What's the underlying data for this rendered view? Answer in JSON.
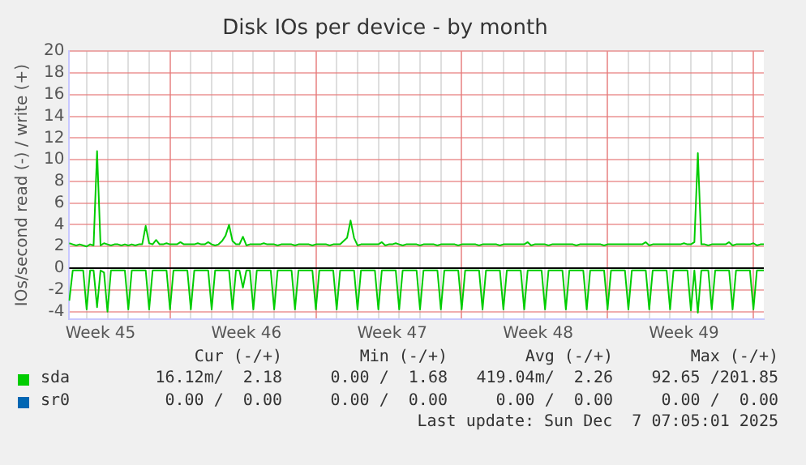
{
  "chart_data": {
    "type": "line",
    "title": "Disk IOs per device - by month",
    "ylabel": "IOs/second read (-) / write (+)",
    "categories": [
      null,
      null,
      null,
      null,
      null,
      null,
      null,
      null,
      null,
      "Week 45",
      null,
      null,
      null,
      null,
      null,
      null,
      null,
      null,
      null,
      null,
      null,
      null,
      null,
      null,
      null,
      null,
      null,
      null,
      null,
      null,
      null,
      null,
      null,
      null,
      null,
      null,
      null,
      null,
      null,
      null,
      null,
      null,
      null,
      null,
      null,
      null,
      null,
      null,
      null,
      null,
      null,
      "Week 46",
      null,
      null,
      null,
      null,
      null,
      null,
      null,
      null,
      null,
      null,
      null,
      null,
      null,
      null,
      null,
      null,
      null,
      null,
      null,
      null,
      null,
      null,
      null,
      null,
      null,
      null,
      null,
      null,
      null,
      null,
      null,
      null,
      null,
      null,
      null,
      null,
      null,
      null,
      null,
      null,
      null,
      "Week 47",
      null,
      null,
      null,
      null,
      null,
      null,
      null,
      null,
      null,
      null,
      null,
      null,
      null,
      null,
      null,
      null,
      null,
      null,
      null,
      null,
      null,
      null,
      null,
      null,
      null,
      null,
      null,
      null,
      null,
      null,
      null,
      null,
      null,
      null,
      null,
      null,
      null,
      null,
      null,
      null,
      null,
      "Week 48",
      null,
      null,
      null,
      null,
      null,
      null,
      null,
      null,
      null,
      null,
      null,
      null,
      null,
      null,
      null,
      null,
      null,
      null,
      null,
      null,
      null,
      null,
      null,
      null,
      null,
      null,
      null,
      null,
      null,
      null,
      null,
      null,
      null,
      null,
      null,
      null,
      null,
      null,
      null,
      null,
      null,
      "Week 49",
      null,
      null,
      null,
      null,
      null,
      null,
      null,
      null,
      null,
      null,
      null,
      null,
      null,
      null,
      null,
      null,
      null,
      null,
      null,
      null,
      null,
      null,
      null
    ],
    "ylim": [
      -4.7,
      20
    ],
    "yticks": [
      -4,
      -2,
      0,
      2,
      4,
      6,
      8,
      10,
      12,
      14,
      16,
      18,
      20
    ],
    "grid": true,
    "legend": "bottom",
    "marker": "none",
    "line_style": "solid",
    "series": [
      {
        "name": "sda",
        "color": "#00cc00",
        "values": [
          2.3,
          2.2,
          2.1,
          2.2,
          2.1,
          2.0,
          2.2,
          2.1,
          10.8,
          2.1,
          2.3,
          2.2,
          2.1,
          2.2,
          2.2,
          2.1,
          2.2,
          2.1,
          2.2,
          2.1,
          2.2,
          2.2,
          3.9,
          2.3,
          2.2,
          2.6,
          2.2,
          2.2,
          2.3,
          2.2,
          2.2,
          2.2,
          2.4,
          2.2,
          2.2,
          2.2,
          2.2,
          2.3,
          2.2,
          2.2,
          2.4,
          2.2,
          2.1,
          2.2,
          2.5,
          3.0,
          4.0,
          2.5,
          2.2,
          2.2,
          2.9,
          2.1,
          2.2,
          2.2,
          2.2,
          2.2,
          2.3,
          2.2,
          2.2,
          2.2,
          2.1,
          2.2,
          2.2,
          2.2,
          2.2,
          2.1,
          2.2,
          2.2,
          2.2,
          2.2,
          2.1,
          2.2,
          2.2,
          2.2,
          2.2,
          2.1,
          2.2,
          2.2,
          2.2,
          2.5,
          2.8,
          4.4,
          2.8,
          2.1,
          2.2,
          2.2,
          2.2,
          2.2,
          2.2,
          2.2,
          2.4,
          2.1,
          2.2,
          2.2,
          2.3,
          2.2,
          2.1,
          2.2,
          2.2,
          2.2,
          2.2,
          2.1,
          2.2,
          2.2,
          2.2,
          2.2,
          2.1,
          2.2,
          2.2,
          2.2,
          2.2,
          2.2,
          2.1,
          2.2,
          2.2,
          2.2,
          2.2,
          2.2,
          2.1,
          2.2,
          2.2,
          2.2,
          2.2,
          2.2,
          2.1,
          2.2,
          2.2,
          2.2,
          2.2,
          2.2,
          2.2,
          2.2,
          2.4,
          2.1,
          2.2,
          2.2,
          2.2,
          2.2,
          2.1,
          2.2,
          2.2,
          2.2,
          2.2,
          2.2,
          2.2,
          2.2,
          2.1,
          2.2,
          2.2,
          2.2,
          2.2,
          2.2,
          2.2,
          2.2,
          2.1,
          2.2,
          2.2,
          2.2,
          2.2,
          2.2,
          2.2,
          2.2,
          2.2,
          2.2,
          2.2,
          2.2,
          2.4,
          2.1,
          2.2,
          2.2,
          2.2,
          2.2,
          2.2,
          2.2,
          2.2,
          2.2,
          2.2,
          2.3,
          2.2,
          2.2,
          2.4,
          10.6,
          2.2,
          2.2,
          2.1,
          2.2,
          2.2,
          2.2,
          2.2,
          2.2,
          2.4,
          2.1,
          2.2,
          2.2,
          2.2,
          2.2,
          2.2,
          2.3,
          2.1,
          2.2,
          2.2
        ]
      },
      {
        "color": "#00cc00",
        "values": [
          -3.0,
          -0.2,
          -0.2,
          -0.2,
          -0.2,
          -3.8,
          -0.2,
          -0.2,
          -3.6,
          -0.2,
          -0.4,
          -4.0,
          -0.2,
          -0.2,
          -0.2,
          -0.2,
          -0.2,
          -3.8,
          -0.2,
          -0.2,
          -0.2,
          -0.2,
          -0.2,
          -3.8,
          -0.2,
          -0.2,
          -0.2,
          -0.2,
          -0.2,
          -3.8,
          -0.2,
          -0.2,
          -0.2,
          -0.2,
          -0.2,
          -3.8,
          -0.2,
          -0.2,
          -0.2,
          -0.2,
          -0.2,
          -3.8,
          -0.2,
          -0.2,
          -0.2,
          -0.2,
          -0.2,
          -3.8,
          -0.2,
          -0.2,
          -1.8,
          -0.2,
          -0.2,
          -3.8,
          -0.2,
          -0.2,
          -0.2,
          -0.2,
          -0.2,
          -3.8,
          -0.2,
          -0.2,
          -0.2,
          -0.2,
          -0.2,
          -3.8,
          -0.2,
          -0.2,
          -0.2,
          -0.2,
          -0.2,
          -3.8,
          -0.2,
          -0.2,
          -0.2,
          -0.2,
          -0.2,
          -3.8,
          -0.2,
          -0.2,
          -0.2,
          -0.2,
          -0.2,
          -3.8,
          -0.2,
          -0.2,
          -0.2,
          -0.2,
          -0.2,
          -3.8,
          -0.2,
          -0.2,
          -0.2,
          -0.2,
          -0.2,
          -3.8,
          -0.2,
          -0.2,
          -0.2,
          -0.2,
          -0.2,
          -3.8,
          -0.2,
          -0.2,
          -0.2,
          -0.2,
          -0.2,
          -3.8,
          -0.2,
          -0.2,
          -0.2,
          -0.2,
          -0.2,
          -3.8,
          -0.2,
          -0.2,
          -0.2,
          -0.2,
          -0.2,
          -3.8,
          -0.2,
          -0.2,
          -0.2,
          -0.2,
          -0.2,
          -3.8,
          -0.2,
          -0.2,
          -0.2,
          -0.2,
          -0.2,
          -3.8,
          -0.2,
          -0.2,
          -0.2,
          -0.2,
          -0.2,
          -3.8,
          -0.2,
          -0.2,
          -0.2,
          -0.2,
          -0.2,
          -3.8,
          -0.2,
          -0.2,
          -0.2,
          -0.2,
          -0.2,
          -3.8,
          -0.2,
          -0.2,
          -0.2,
          -0.2,
          -0.2,
          -3.8,
          -0.2,
          -0.2,
          -0.2,
          -0.2,
          -0.2,
          -3.8,
          -0.2,
          -0.2,
          -0.2,
          -0.2,
          -0.2,
          -3.8,
          -0.2,
          -0.2,
          -0.2,
          -0.2,
          -0.2,
          -3.8,
          -0.2,
          -0.2,
          -0.2,
          -0.2,
          -0.2,
          -3.9,
          -0.2,
          -4.1,
          -0.2,
          -0.2,
          -0.2,
          -3.8,
          -0.2,
          -0.2,
          -0.2,
          -0.2,
          -0.2,
          -3.8,
          -0.2,
          -0.2,
          -0.2,
          -0.2,
          -0.2,
          -3.8,
          -0.2,
          -0.2,
          -0.2
        ]
      },
      {
        "name": "sr0",
        "color": "#0066b3",
        "values": [
          null,
          null,
          null,
          null,
          null,
          null,
          null,
          null,
          null,
          null,
          null,
          null,
          null,
          null,
          null,
          null,
          null,
          null,
          null,
          null,
          null,
          null,
          null,
          null,
          null,
          null,
          null,
          null,
          null,
          null,
          null,
          null,
          null,
          null,
          null,
          null,
          null,
          null,
          null,
          null,
          null,
          null,
          null,
          null,
          null,
          null,
          null,
          null,
          null,
          null,
          null,
          null,
          null,
          null,
          null,
          null,
          null,
          null,
          null,
          null,
          null,
          null,
          null,
          null,
          null,
          null,
          null,
          null,
          null,
          null,
          null,
          null,
          null,
          null,
          null,
          null,
          null,
          null,
          null,
          null,
          null,
          null,
          null,
          null,
          null,
          null,
          null,
          null,
          null,
          null,
          null,
          null,
          null,
          null,
          null,
          null,
          null,
          null,
          null,
          null,
          null,
          null,
          null,
          null,
          null,
          null,
          null,
          null,
          null,
          null,
          null,
          null,
          null,
          null,
          null,
          null,
          null,
          null,
          null,
          null,
          null,
          null,
          null,
          null,
          null,
          null,
          null,
          null,
          null,
          null,
          null,
          null,
          null,
          null,
          null,
          null,
          null,
          null,
          null,
          null,
          null,
          null,
          null,
          null,
          null,
          null,
          null,
          null,
          null,
          null,
          null,
          null,
          null,
          null,
          null,
          null,
          null,
          null,
          null,
          null,
          null,
          null,
          null,
          null,
          null,
          null,
          null,
          null,
          null,
          null,
          null,
          null,
          null,
          null,
          null,
          null,
          null,
          null,
          null,
          null,
          null,
          null,
          null,
          null,
          null,
          null,
          null,
          null,
          null,
          null,
          null,
          null,
          null,
          null,
          null,
          null,
          null,
          null,
          null,
          null,
          null
        ]
      }
    ],
    "annotations": [
      "Cur (-/+)",
      "Min (-/+)",
      "Avg (-/+)",
      "Max (-/+)",
      "16.12m/  2.18",
      "0.00 /  1.68",
      "419.04m/  2.26",
      "92.65 /201.85",
      "0.00 /  0.00",
      "0.00 /  0.00",
      "0.00 /  0.00",
      "0.00 /  0.00",
      "Last update: Sun Dec  7 07:05:01 2025"
    ]
  }
}
